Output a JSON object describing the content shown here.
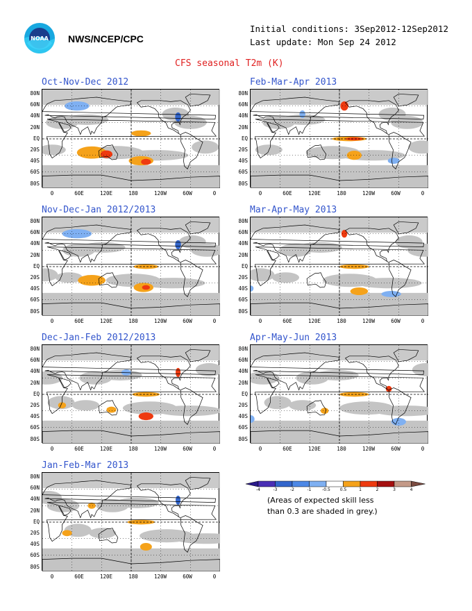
{
  "header": {
    "org": "NWS/NCEP/CPC",
    "initial_conditions": "Initial conditions: 3Sep2012-12Sep2012",
    "last_update": "Last update: Mon Sep 24 2012",
    "title": "CFS seasonal T2m (K)",
    "logo_text": "NOAA"
  },
  "axes": {
    "lat_labels": [
      "80N",
      "60N",
      "40N",
      "20N",
      "EQ",
      "20S",
      "40S",
      "60S",
      "80S"
    ],
    "lon_labels": [
      "0",
      "60E",
      "120E",
      "180",
      "120W",
      "60W",
      "0"
    ]
  },
  "panels": [
    {
      "title": "Oct-Nov-Dec 2012"
    },
    {
      "title": "Feb-Mar-Apr 2013"
    },
    {
      "title": "Nov-Dec-Jan 2012/2013"
    },
    {
      "title": "Mar-Apr-May 2013"
    },
    {
      "title": "Dec-Jan-Feb 2012/2013"
    },
    {
      "title": "Apr-May-Jun 2013"
    },
    {
      "title": "Jan-Feb-Mar 2013"
    }
  ],
  "legend": {
    "ticks": [
      "-4",
      "-3",
      "-2",
      "-1",
      "-0.5",
      "0.5",
      "1",
      "2",
      "3",
      "4"
    ],
    "colors": [
      "#4a2fb5",
      "#3366cc",
      "#4d88e6",
      "#7fb0f2",
      "#ffffff",
      "#f5a21a",
      "#ee3a10",
      "#a51010",
      "#c49a88"
    ],
    "end_low": "#2a1a8a",
    "end_high": "#7a4a40",
    "note_line1": "(Areas of expected skill less",
    "note_line2": "than 0.3 are shaded in grey.)"
  },
  "colors": {
    "grey_skill": "#c4c4c4",
    "title_blue": "#3355cc",
    "title_red": "#e02020"
  }
}
